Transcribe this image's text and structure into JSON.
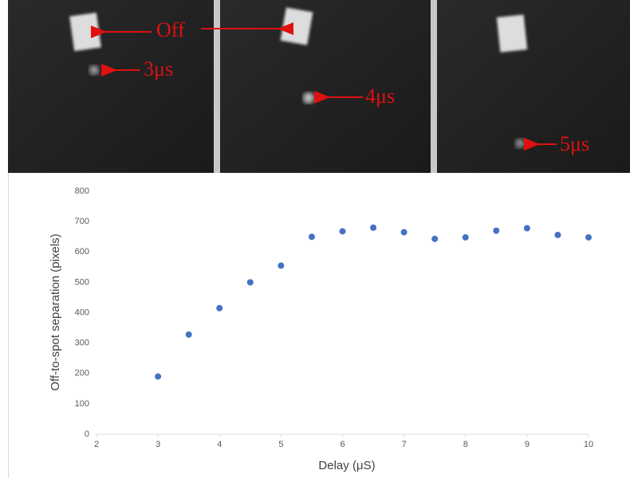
{
  "chart_data": {
    "type": "scatter",
    "annotations": [
      "Off",
      "3μs",
      "4μs",
      "5μs"
    ],
    "xlabel": "Delay (μS)",
    "ylabel": "Off-to-spot separation (pixels)",
    "x": [
      3,
      3.5,
      4,
      4.5,
      5,
      5.5,
      6,
      6.5,
      7,
      7.5,
      8,
      8.5,
      9,
      9.5,
      10
    ],
    "values": [
      190,
      328,
      415,
      500,
      555,
      650,
      668,
      680,
      665,
      643,
      648,
      670,
      678,
      656,
      648
    ],
    "color": "#4472c4",
    "xlim": [
      2,
      10
    ],
    "xticks": [
      2,
      3,
      4,
      5,
      6,
      7,
      8,
      9,
      10
    ],
    "ylim": [
      0,
      800
    ],
    "yticks": [
      0,
      100,
      200,
      300,
      400,
      500,
      600,
      700,
      800
    ],
    "grid": false
  }
}
